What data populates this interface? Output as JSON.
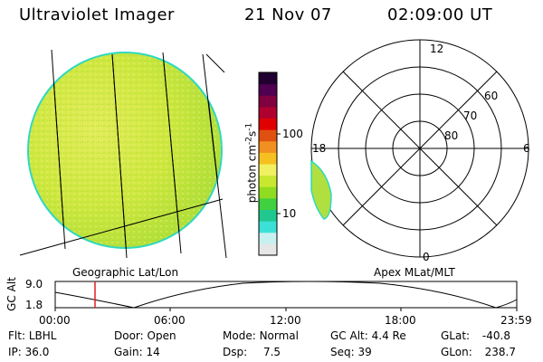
{
  "header": {
    "title": "Ultraviolet Imager",
    "date": "21 Nov 07",
    "time": "02:09:00 UT"
  },
  "colorbar": {
    "unit": "photon cm",
    "tick_100": "100",
    "tick_10": "10",
    "scale": "log",
    "colors": [
      "#e6e6e6",
      "#c8f0f0",
      "#3de0d6",
      "#20c890",
      "#40d040",
      "#8fdc20",
      "#c8e830",
      "#f0f060",
      "#f5c020",
      "#f09020",
      "#e05010",
      "#e00000",
      "#b00030",
      "#800040",
      "#500050",
      "#200030"
    ]
  },
  "geo_view": {
    "label": "Geographic Lat/Lon",
    "disk_color": "#c8e83a",
    "edge_color": "#30d8c0"
  },
  "polar_view": {
    "label": "Apex MLat/MLT",
    "mlt_labels": {
      "top": "12",
      "left": "18",
      "right": "6",
      "bottom": "0"
    },
    "mlat_labels": [
      "60",
      "70",
      "80"
    ]
  },
  "altitude_plot": {
    "ylabel": "GC Alt",
    "yticks": [
      "9.0",
      "1.8"
    ],
    "xticks": [
      "00:00",
      "06:00",
      "12:00",
      "18:00",
      "23:59"
    ],
    "marker_color": "#e02020"
  },
  "status": {
    "row1": [
      {
        "label": "Flt:",
        "value": "LBHL"
      },
      {
        "label": "Door:",
        "value": "Open"
      },
      {
        "label": "Mode:",
        "value": "Normal"
      },
      {
        "label": "GC Alt:",
        "value": "4.4 Re"
      },
      {
        "label": "GLat:",
        "value": "-40.8"
      }
    ],
    "row2": [
      {
        "label": "IP:",
        "value": "36.0"
      },
      {
        "label": "Gain:",
        "value": "14"
      },
      {
        "label": "Dsp:",
        "value": "7.5"
      },
      {
        "label": "Seq:",
        "value": "39"
      },
      {
        "label": "GLon:",
        "value": "238.7"
      }
    ]
  }
}
